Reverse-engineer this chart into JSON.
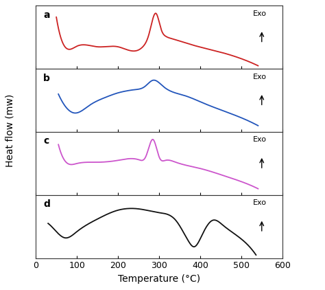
{
  "xlabel": "Temperature (°C)",
  "ylabel": "Heat flow (mw)",
  "xlim": [
    0,
    600
  ],
  "panel_labels": [
    "a",
    "b",
    "c",
    "d"
  ],
  "colors": [
    "#cc2222",
    "#2255bb",
    "#cc55cc",
    "#111111"
  ],
  "background_color": "#ffffff",
  "exo_label": "Exo"
}
